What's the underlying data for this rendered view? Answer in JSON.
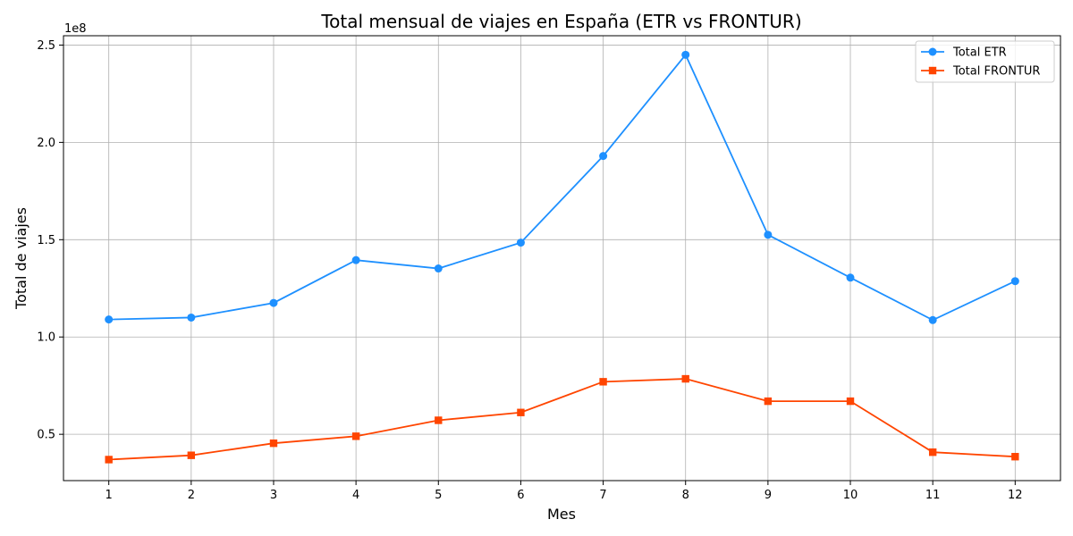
{
  "chart_data": {
    "type": "line",
    "title": "Total mensual de viajes en España (ETR vs FRONTUR)",
    "xlabel": "Mes",
    "ylabel": "Total de viajes",
    "y_offset_label": "1e8",
    "x": [
      1,
      2,
      3,
      4,
      5,
      6,
      7,
      8,
      9,
      10,
      11,
      12
    ],
    "x_tick_labels": [
      "1",
      "2",
      "3",
      "4",
      "5",
      "6",
      "7",
      "8",
      "9",
      "10",
      "11",
      "12"
    ],
    "y_ticks": [
      0.5,
      1.0,
      1.5,
      2.0,
      2.5
    ],
    "y_tick_labels": [
      "0.5",
      "1.0",
      "1.5",
      "2.0",
      "2.5"
    ],
    "ylim": [
      0.262,
      2.548
    ],
    "xlim": [
      0.45,
      12.55
    ],
    "grid": true,
    "legend_position": "top-right",
    "series": [
      {
        "name": "Total ETR",
        "color": "#1E90FF",
        "marker": "circle",
        "values": [
          1.09,
          1.1,
          1.175,
          1.395,
          1.352,
          1.485,
          1.93,
          2.45,
          1.525,
          1.305,
          1.087,
          1.287
        ]
      },
      {
        "name": "Total FRONTUR",
        "color": "#FF4500",
        "marker": "square",
        "values": [
          0.37,
          0.392,
          0.454,
          0.49,
          0.572,
          0.612,
          0.77,
          0.785,
          0.67,
          0.67,
          0.408,
          0.385
        ]
      }
    ]
  }
}
